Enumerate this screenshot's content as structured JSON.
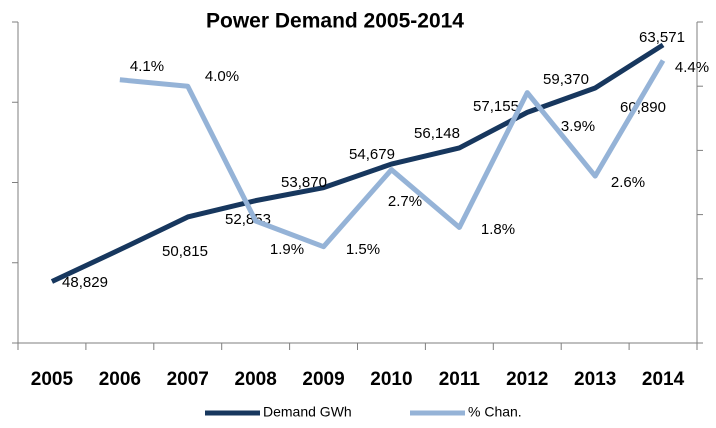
{
  "chart_data": {
    "type": "line",
    "title": "Power Demand 2005-2014",
    "categories": [
      "2005",
      "2006",
      "2007",
      "2008",
      "2009",
      "2010",
      "2011",
      "2012",
      "2013",
      "2014"
    ],
    "series": [
      {
        "name": "Demand GWh",
        "color": "#17375e",
        "values": [
          48829,
          50815,
          52853,
          53870,
          54679,
          56148,
          57155,
          59370,
          60890,
          63571
        ],
        "value_labels": [
          "48,829",
          "50,815",
          "52,853",
          "53,870",
          "54,679",
          "56,148",
          "57,155",
          "59,370",
          "60,890",
          "63,571"
        ]
      },
      {
        "name": "% Chan.",
        "color": "#95b3d7",
        "axis": "y2",
        "values": [
          null,
          4.1,
          4.0,
          1.9,
          1.5,
          2.7,
          1.8,
          3.9,
          2.6,
          4.4
        ],
        "value_labels": [
          null,
          "4.1%",
          "4.0%",
          "1.9%",
          "1.5%",
          "2.7%",
          "1.8%",
          "3.9%",
          "2.6%",
          "4.4%"
        ]
      }
    ],
    "ylim": [
      45000,
      65000
    ],
    "yticks": [
      45000,
      50000,
      55000,
      60000,
      65000
    ],
    "y2lim": [
      0,
      5
    ],
    "y2ticks": [
      0,
      1,
      2,
      3,
      4,
      5
    ],
    "legend": "bottom"
  }
}
